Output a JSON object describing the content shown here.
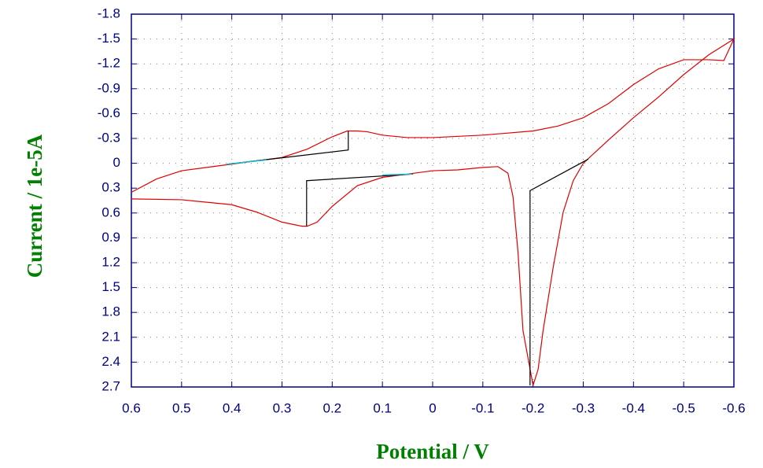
{
  "chart_data": {
    "type": "line",
    "xlabel": "Potential / V",
    "ylabel": "Current / 1e-5A",
    "xlim": [
      0.6,
      -0.6
    ],
    "ylim": [
      2.7,
      -1.8
    ],
    "xticks": [
      0.6,
      0.5,
      0.4,
      0.3,
      0.2,
      0.1,
      0,
      -0.1,
      -0.2,
      -0.3,
      -0.4,
      -0.5,
      -0.6
    ],
    "yticks": [
      -1.8,
      -1.5,
      -1.2,
      -0.9,
      -0.6,
      -0.3,
      0,
      0.3,
      0.6,
      0.9,
      1.2,
      1.5,
      1.8,
      2.1,
      2.4,
      2.7
    ],
    "grid": true,
    "axis_color": "#000080",
    "series": [
      {
        "color": "#e00000",
        "x": [
          0.6,
          0.5,
          0.4,
          0.35,
          0.3,
          0.26,
          0.25,
          0.23,
          0.2,
          0.15,
          0.1,
          0.05,
          0,
          -0.05,
          -0.1,
          -0.13,
          -0.15,
          -0.16,
          -0.17,
          -0.18,
          -0.2,
          -0.21,
          -0.22,
          -0.24,
          -0.26,
          -0.28,
          -0.3,
          -0.35,
          -0.4,
          -0.45,
          -0.5,
          -0.55,
          -0.6,
          -0.58,
          -0.55,
          -0.5,
          -0.45,
          -0.4,
          -0.35,
          -0.3,
          -0.25,
          -0.2,
          -0.1,
          0,
          0.05,
          0.1,
          0.13,
          0.15,
          0.17,
          0.2,
          0.25,
          0.3,
          0.35,
          0.4,
          0.5,
          0.55,
          0.6
        ],
        "values": [
          0.43,
          0.44,
          0.5,
          0.59,
          0.71,
          0.76,
          0.76,
          0.71,
          0.52,
          0.27,
          0.17,
          0.13,
          0.09,
          0.08,
          0.05,
          0.04,
          0.12,
          0.4,
          1.07,
          2.02,
          2.68,
          2.49,
          2.02,
          1.26,
          0.59,
          0.21,
          0.0,
          -0.28,
          -0.55,
          -0.8,
          -1.07,
          -1.31,
          -1.5,
          -1.24,
          -1.25,
          -1.25,
          -1.14,
          -0.95,
          -0.72,
          -0.55,
          -0.45,
          -0.39,
          -0.34,
          -0.31,
          -0.31,
          -0.34,
          -0.38,
          -0.39,
          -0.39,
          -0.32,
          -0.17,
          -0.07,
          -0.03,
          0.01,
          0.09,
          0.19,
          0.35
        ]
      },
      {
        "color": "#000000",
        "x": [
          0.407,
          0.168,
          0.168,
          null,
          0.039,
          0.251,
          0.251,
          null,
          -0.31,
          -0.194,
          -0.194
        ],
        "values": [
          0.01,
          -0.16,
          -0.39,
          null,
          0.13,
          0.21,
          0.76,
          null,
          -0.05,
          0.33,
          2.68
        ]
      },
      {
        "color": "#00c8e0",
        "x": [
          0.41,
          0.33,
          null,
          0.1,
          0.04
        ],
        "values": [
          0.01,
          -0.04,
          null,
          0.14,
          0.13
        ]
      }
    ]
  }
}
